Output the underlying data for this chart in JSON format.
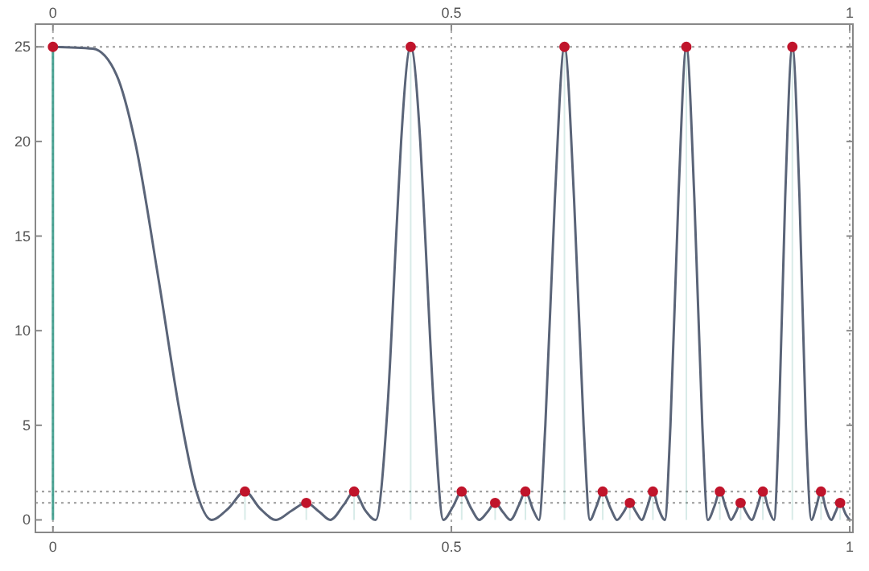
{
  "chart_data": {
    "type": "line",
    "xlim": [
      -0.022,
      1.004
    ],
    "xticks": [
      0,
      0.5,
      1
    ],
    "x2lim": [
      -0.022,
      1.004
    ],
    "x2ticks": [
      0,
      0.5,
      1
    ],
    "ylim": [
      -0.66,
      26.2
    ],
    "yticks": [
      0,
      5,
      10,
      15,
      20,
      25
    ],
    "grid": "x",
    "line_style": "solid",
    "ref_lines": [
      {
        "axis": "y",
        "value": 25,
        "line_style": "dotted",
        "color": "#999999"
      },
      {
        "axis": "y",
        "value": 1.5,
        "line_style": "dotted",
        "color": "#999999"
      },
      {
        "axis": "y",
        "value": 0.9,
        "line_style": "dotted",
        "color": "#999999"
      }
    ],
    "series": [
      {
        "marker": "none",
        "color": "#5a6478",
        "x": [
          0,
          0.05,
          0.08,
          0.103,
          0.133,
          0.16,
          0.18,
          0.199,
          0.22,
          0.241,
          0.26,
          0.28,
          0.3,
          0.318,
          0.335,
          0.348,
          0.365,
          0.378,
          0.392,
          0.405,
          0.42,
          0.432,
          0.437,
          0.449,
          0.461,
          0.466,
          0.478,
          0.49,
          0.502,
          0.513,
          0.525,
          0.535,
          0.545,
          0.555,
          0.565,
          0.574,
          0.585,
          0.593,
          0.603,
          0.61,
          0.618,
          0.63,
          0.642,
          0.654,
          0.666,
          0.674,
          0.682,
          0.69,
          0.7,
          0.708,
          0.716,
          0.724,
          0.732,
          0.739,
          0.746,
          0.753,
          0.76,
          0.768,
          0.775,
          0.785,
          0.795,
          0.805,
          0.815,
          0.822,
          0.83,
          0.837,
          0.845,
          0.851,
          0.857,
          0.863,
          0.87,
          0.877,
          0.884,
          0.891,
          0.898,
          0.905,
          0.911,
          0.919,
          0.928,
          0.937,
          0.945,
          0.952,
          0.958,
          0.964,
          0.97,
          0.977,
          0.982,
          0.988,
          0.995,
          1
        ],
        "values": [
          25,
          24.9,
          23.5,
          20,
          12.6,
          5.5,
          1.5,
          0,
          0.6,
          1.5,
          0.6,
          0,
          0.5,
          0.9,
          0.4,
          0,
          0.8,
          1.5,
          0.5,
          0,
          6,
          16,
          20,
          25,
          20,
          16,
          6,
          0,
          0.7,
          1.5,
          0.6,
          0,
          0.4,
          0.9,
          0.4,
          0,
          0.8,
          1.5,
          0.5,
          0,
          5,
          17,
          25,
          17,
          5,
          0,
          0.7,
          1.5,
          0.6,
          0,
          0.4,
          0.9,
          0.4,
          0,
          0.7,
          1.5,
          0.6,
          0,
          5,
          17,
          25,
          17,
          5,
          0,
          0.7,
          1.5,
          0.6,
          0,
          0.4,
          0.9,
          0.4,
          0,
          0.7,
          1.5,
          0.6,
          0,
          5,
          17,
          25,
          17,
          5,
          0,
          0.7,
          1.5,
          0.6,
          0,
          0.4,
          0.9,
          0.3,
          0
        ]
      },
      {
        "type": "lollipop",
        "marker": "circle",
        "color": "#c0142b",
        "x": [
          0,
          0.241,
          0.318,
          0.378,
          0.449,
          0.513,
          0.555,
          0.593,
          0.642,
          0.69,
          0.724,
          0.753,
          0.795,
          0.837,
          0.863,
          0.891,
          0.928,
          0.964,
          0.988
        ],
        "values": [
          25,
          1.5,
          0.9,
          1.5,
          25,
          1.5,
          0.9,
          1.5,
          25,
          1.5,
          0.9,
          1.5,
          25,
          1.5,
          0.9,
          1.5,
          25,
          1.5,
          0.9
        ]
      }
    ]
  }
}
